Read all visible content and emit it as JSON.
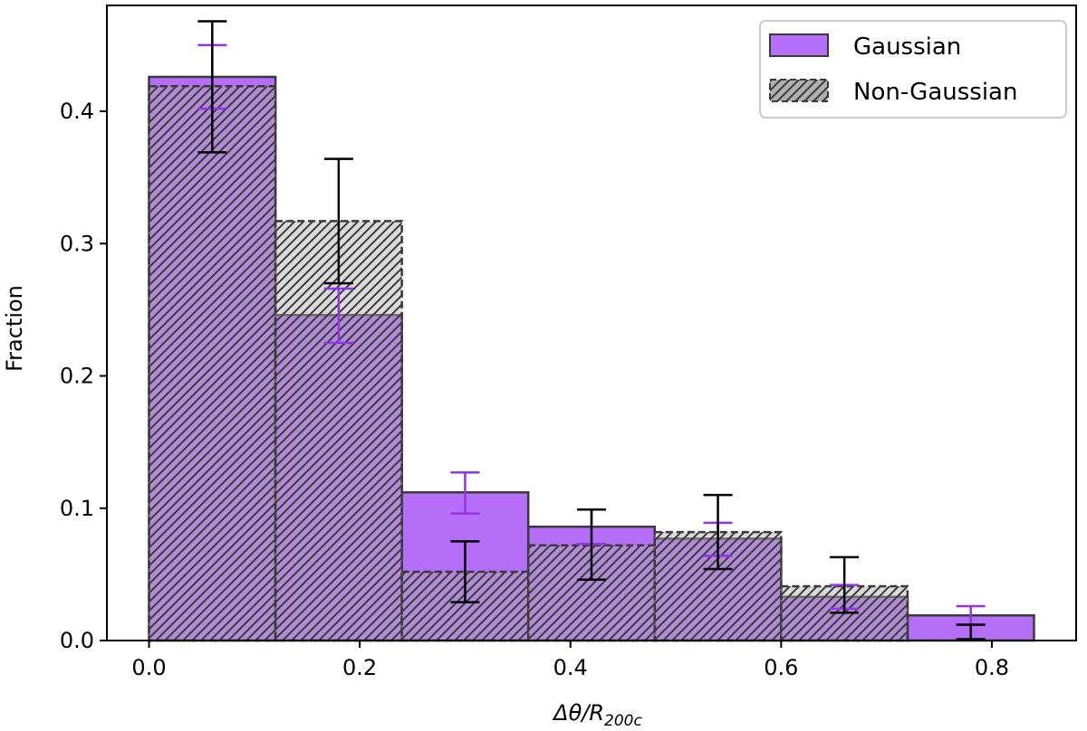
{
  "chart_data": {
    "type": "bar",
    "xlabel": "Δθ/R",
    "xlabel_sub": "200c",
    "ylabel": "Fraction",
    "xlim": [
      -0.04,
      0.88
    ],
    "ylim": [
      0.0,
      0.48
    ],
    "xticks": [
      "0.0",
      "0.2",
      "0.4",
      "0.6",
      "0.8"
    ],
    "yticks": [
      "0.0",
      "0.1",
      "0.2",
      "0.3",
      "0.4"
    ],
    "bin_edges": [
      0.0,
      0.12,
      0.24,
      0.36,
      0.48,
      0.6,
      0.72,
      0.84
    ],
    "legend_position": "top-right",
    "series": [
      {
        "name": "Gaussian",
        "color": "#a855f7",
        "values": [
          0.426,
          0.246,
          0.112,
          0.086,
          0.077,
          0.033,
          0.019
        ],
        "err_low": [
          0.402,
          0.225,
          0.096,
          0.073,
          0.064,
          0.024,
          0.012
        ],
        "err_high": [
          0.45,
          0.266,
          0.127,
          0.099,
          0.089,
          0.042,
          0.026
        ]
      },
      {
        "name": "Non-Gaussian",
        "color": "#b0b0b0",
        "values": [
          0.419,
          0.317,
          0.052,
          0.072,
          0.082,
          0.041,
          0.0
        ],
        "err_low": [
          0.369,
          0.27,
          0.029,
          0.046,
          0.054,
          0.021,
          0.001
        ],
        "err_high": [
          0.468,
          0.364,
          0.075,
          0.099,
          0.11,
          0.063,
          0.012
        ]
      }
    ]
  }
}
